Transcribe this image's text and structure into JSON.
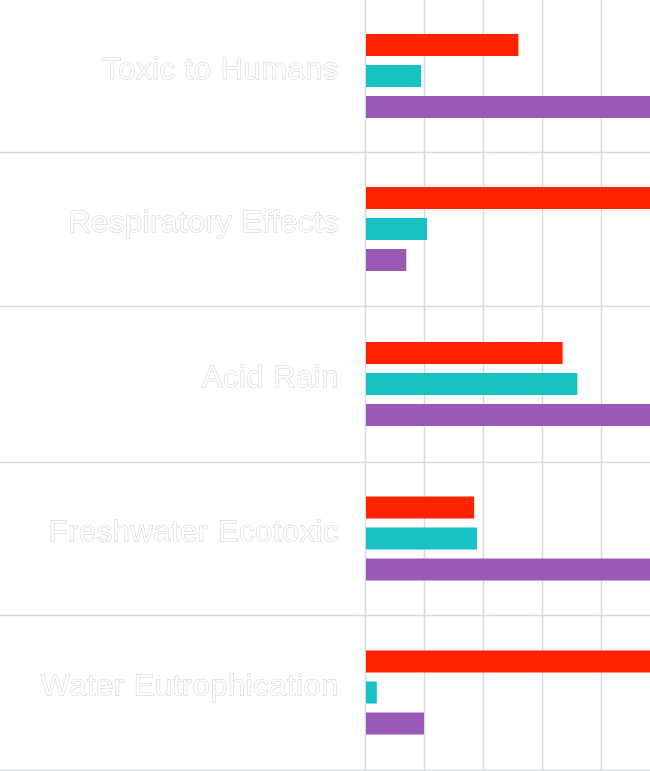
{
  "chart_data": {
    "type": "bar",
    "orientation": "horizontal",
    "categories": [
      "Toxic to Humans",
      "Respiratory Effects",
      "Acid Rain",
      "Freshwater Ecotoxic",
      "Water Eutrophication"
    ],
    "series": [
      {
        "color": "#ff2200",
        "values": [
          2.6,
          5.0,
          3.35,
          1.85,
          5.0
        ]
      },
      {
        "color": "#19c2c2",
        "values": [
          0.95,
          1.05,
          3.6,
          1.9,
          0.2
        ]
      },
      {
        "color": "#9b59b6",
        "values": [
          5.0,
          0.7,
          5.0,
          5.0,
          1.0
        ]
      }
    ],
    "xlim": [
      0,
      5
    ],
    "grid": true,
    "legend": "none",
    "colors": {
      "background": "#ffffff",
      "grid": "#d6d9e6",
      "separator": "#d6d9e6",
      "label_fill": "#ffffff",
      "label_outline": "#bdbdbd"
    }
  }
}
